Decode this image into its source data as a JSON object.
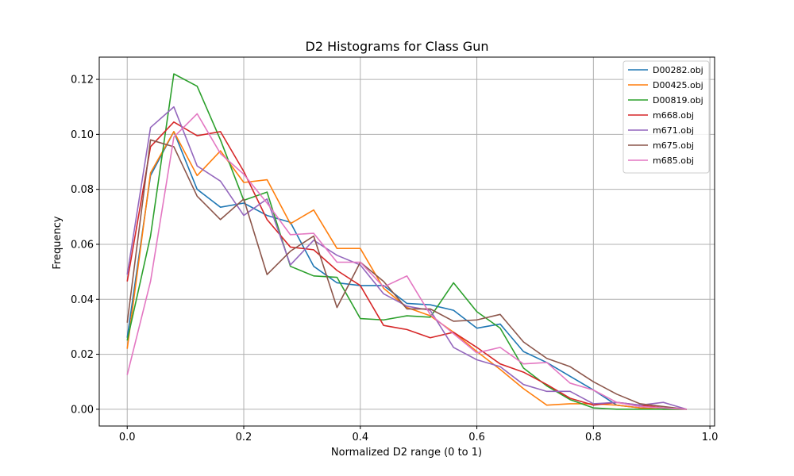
{
  "chart_data": {
    "type": "line",
    "title": "D2 Histograms for Class Gun",
    "xlabel": "Normalized D2 range (0 to 1)",
    "ylabel": "Frequency",
    "xlim": [
      -0.048,
      1.008
    ],
    "ylim": [
      -0.0061,
      0.1281
    ],
    "xticks": [
      0.0,
      0.2,
      0.4,
      0.6,
      0.8,
      1.0
    ],
    "xtick_labels": [
      "0.0",
      "0.2",
      "0.4",
      "0.6",
      "0.8",
      "1.0"
    ],
    "yticks": [
      0.0,
      0.02,
      0.04,
      0.06,
      0.08,
      0.1,
      0.12
    ],
    "ytick_labels": [
      "0.00",
      "0.02",
      "0.04",
      "0.06",
      "0.08",
      "0.10",
      "0.12"
    ],
    "grid": true,
    "legend_position": "top-right",
    "x": [
      0.0,
      0.04,
      0.08,
      0.12,
      0.16,
      0.2,
      0.24,
      0.28,
      0.32,
      0.36,
      0.4,
      0.44,
      0.48,
      0.52,
      0.56,
      0.6,
      0.64,
      0.68,
      0.72,
      0.76,
      0.8,
      0.84,
      0.88,
      0.92,
      0.96
    ],
    "series": [
      {
        "name": "D00282.obj",
        "color": "#1f77b4",
        "values": [
          0.026,
          0.085,
          0.101,
          0.08,
          0.0735,
          0.075,
          0.0705,
          0.068,
          0.052,
          0.046,
          0.045,
          0.045,
          0.0385,
          0.038,
          0.036,
          0.0295,
          0.031,
          0.021,
          0.017,
          0.012,
          0.007,
          0.0015,
          0.0005,
          0.0,
          0.0
        ]
      },
      {
        "name": "D00425.obj",
        "color": "#ff7f0e",
        "values": [
          0.022,
          0.086,
          0.101,
          0.085,
          0.094,
          0.0825,
          0.0835,
          0.0675,
          0.0725,
          0.0585,
          0.0585,
          0.044,
          0.037,
          0.034,
          0.028,
          0.021,
          0.0145,
          0.0075,
          0.0015,
          0.002,
          0.002,
          0.0015,
          0.0005,
          0.0,
          0.0
        ]
      },
      {
        "name": "D00819.obj",
        "color": "#2ca02c",
        "values": [
          0.025,
          0.063,
          0.122,
          0.1175,
          0.098,
          0.076,
          0.079,
          0.052,
          0.0485,
          0.048,
          0.033,
          0.0325,
          0.034,
          0.0335,
          0.046,
          0.0355,
          0.0295,
          0.015,
          0.0085,
          0.0035,
          0.0005,
          0.0,
          0.0,
          0.0,
          0.0
        ]
      },
      {
        "name": "m668.obj",
        "color": "#d62728",
        "values": [
          0.0465,
          0.0955,
          0.1045,
          0.0995,
          0.101,
          0.0865,
          0.069,
          0.059,
          0.058,
          0.0505,
          0.045,
          0.0305,
          0.029,
          0.026,
          0.028,
          0.0225,
          0.0165,
          0.0135,
          0.009,
          0.004,
          0.0015,
          0.0025,
          0.0015,
          0.0005,
          0.0
        ]
      },
      {
        "name": "m671.obj",
        "color": "#9467bd",
        "values": [
          0.049,
          0.1025,
          0.11,
          0.0885,
          0.083,
          0.0705,
          0.0765,
          0.0525,
          0.0615,
          0.056,
          0.0525,
          0.042,
          0.0375,
          0.036,
          0.0225,
          0.018,
          0.0155,
          0.009,
          0.0065,
          0.0065,
          0.002,
          0.0025,
          0.0015,
          0.0025,
          0.0
        ]
      },
      {
        "name": "m675.obj",
        "color": "#8c564b",
        "values": [
          0.0315,
          0.098,
          0.0955,
          0.0775,
          0.069,
          0.0765,
          0.049,
          0.0575,
          0.063,
          0.037,
          0.0535,
          0.0465,
          0.0365,
          0.0365,
          0.032,
          0.0325,
          0.0345,
          0.0245,
          0.0185,
          0.0155,
          0.01,
          0.0055,
          0.002,
          0.001,
          0.0
        ]
      },
      {
        "name": "m685.obj",
        "color": "#e377c2",
        "values": [
          0.0125,
          0.0465,
          0.099,
          0.1075,
          0.093,
          0.0855,
          0.075,
          0.0635,
          0.064,
          0.0535,
          0.0535,
          0.0445,
          0.0485,
          0.0345,
          0.0275,
          0.0205,
          0.0225,
          0.0165,
          0.017,
          0.0095,
          0.007,
          0.0025,
          0.001,
          0.0005,
          0.0
        ]
      }
    ]
  }
}
